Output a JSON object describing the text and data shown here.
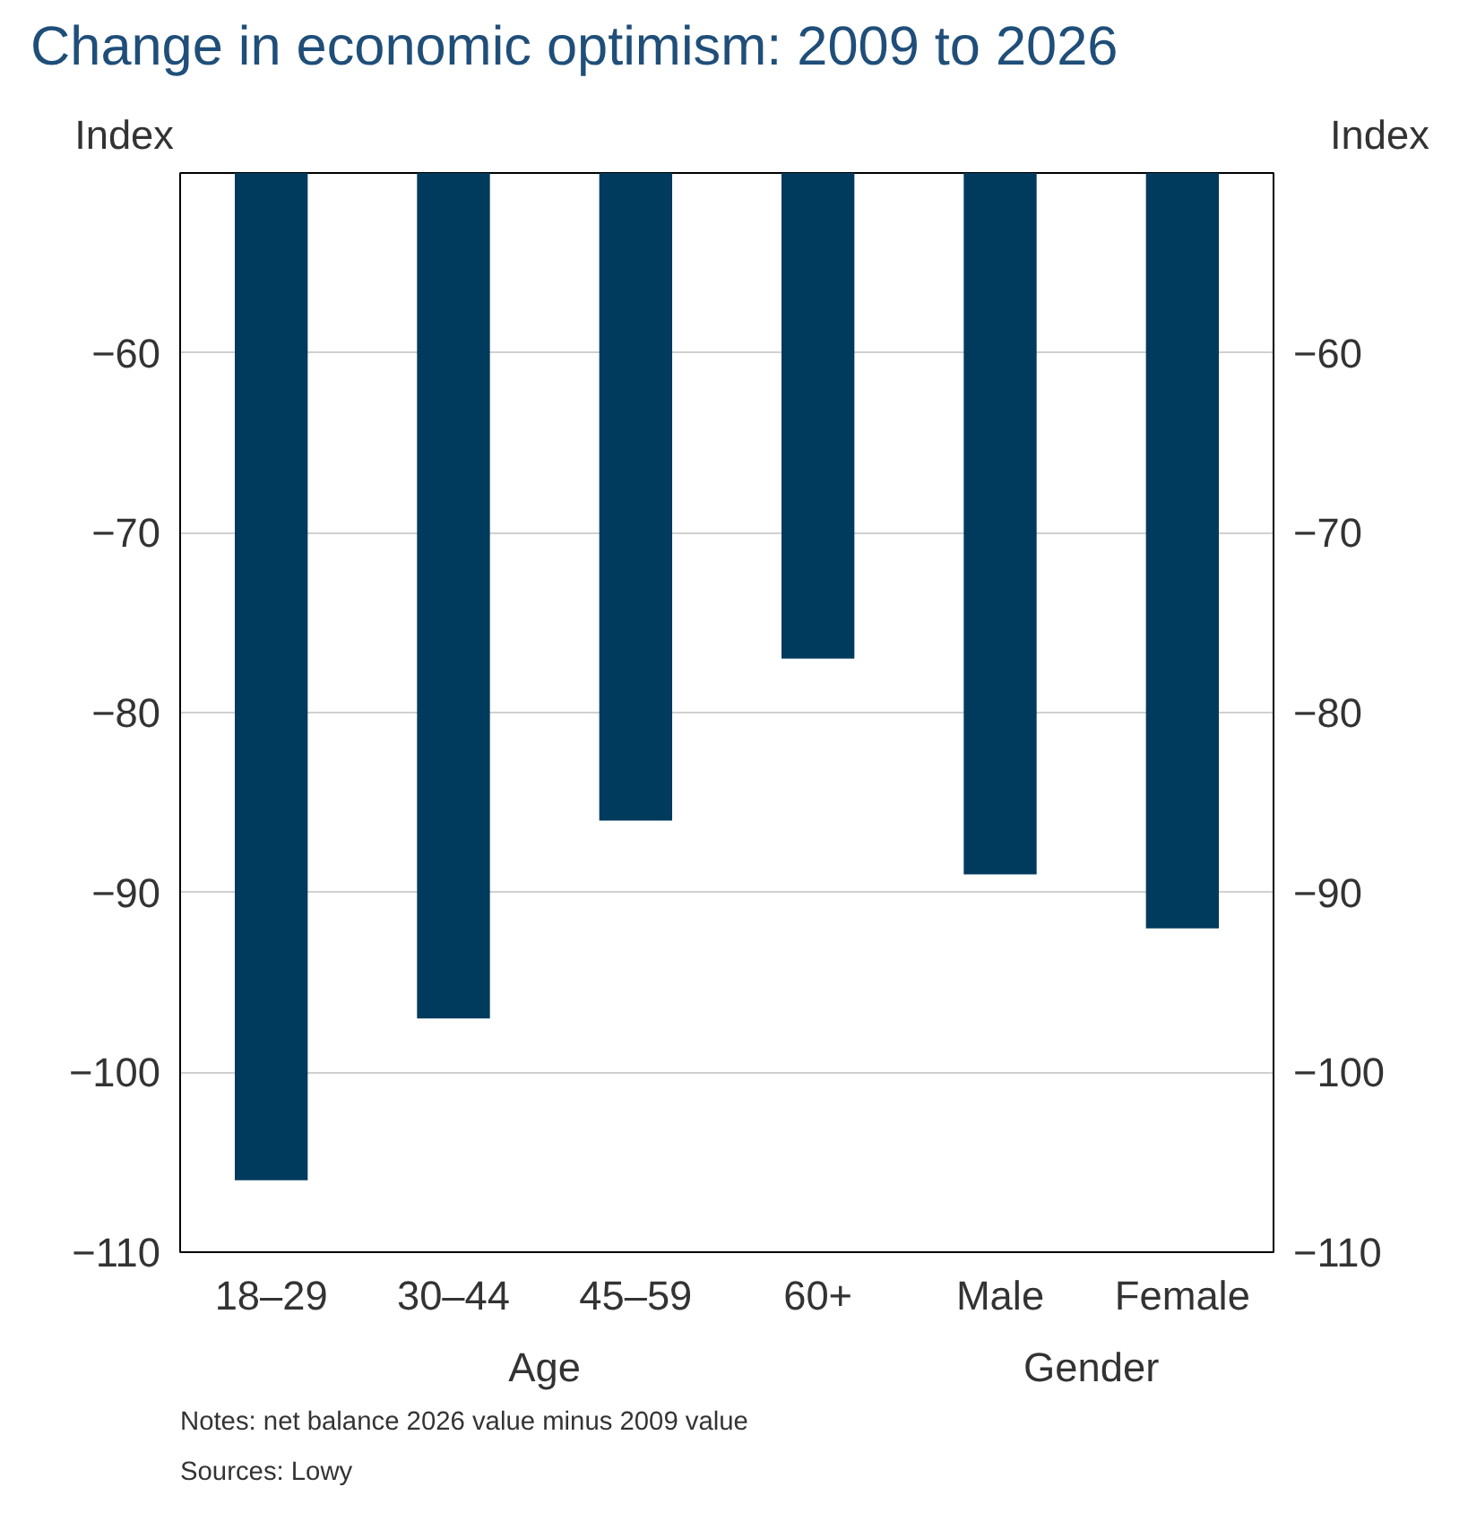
{
  "chart_data": {
    "type": "bar",
    "title": "Change in economic optimism: 2009 to 2026",
    "ylabel": "Index",
    "y2label": "Index",
    "categories": [
      "18–29",
      "30–44",
      "45–59",
      "60+",
      "Male",
      "Female"
    ],
    "values": [
      -106,
      -97,
      -86,
      -77,
      -89,
      -92
    ],
    "color": "#003a5c",
    "ylim": [
      -110,
      -50
    ],
    "yticks": [
      -110,
      -100,
      -90,
      -80,
      -70,
      -60
    ],
    "y2lim": [
      -110,
      -50
    ],
    "y2ticks": [
      -110,
      -100,
      -90,
      -80,
      -70,
      -60
    ],
    "grid": "y",
    "annotations": [
      "Age",
      "Gender",
      "Notes: net balance 2026 value minus 2009 value",
      "Sources: Lowy"
    ]
  }
}
